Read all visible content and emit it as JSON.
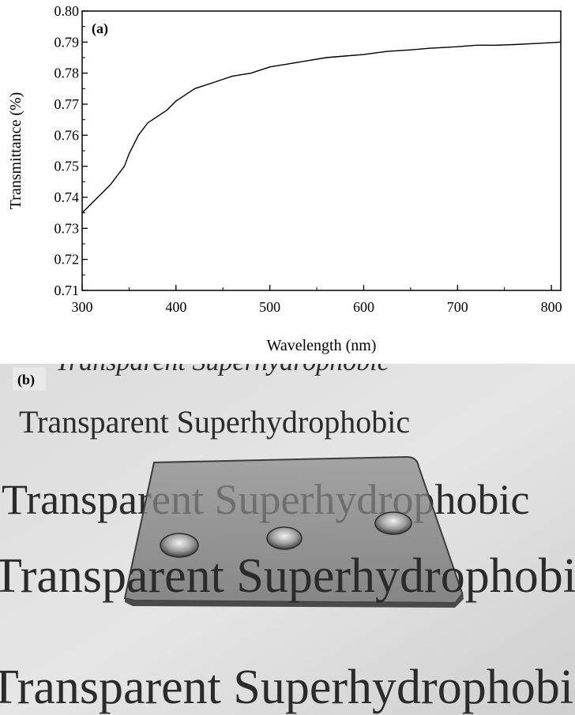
{
  "chart_data": {
    "type": "line",
    "panel_label": "(a)",
    "xlabel": "Wavelength (nm)",
    "ylabel": "Transmittance (%)",
    "xlim": [
      300,
      810
    ],
    "ylim": [
      0.71,
      0.8
    ],
    "x_ticks": [
      300,
      400,
      500,
      600,
      700,
      800
    ],
    "y_ticks": [
      0.71,
      0.72,
      0.73,
      0.74,
      0.75,
      0.76,
      0.77,
      0.78,
      0.79,
      0.8
    ],
    "y_tick_labels": [
      "0.71",
      "0.72",
      "0.73",
      "0.74",
      "0.75",
      "0.76",
      "0.77",
      "0.78",
      "0.79",
      "0.80"
    ],
    "grid": false,
    "series": [
      {
        "x": [
          300,
          310,
          320,
          330,
          340,
          345,
          350,
          355,
          360,
          365,
          370,
          375,
          380,
          390,
          400,
          410,
          420,
          430,
          440,
          450,
          460,
          470,
          480,
          490,
          500,
          520,
          540,
          560,
          580,
          600,
          625,
          650,
          670,
          700,
          720,
          740,
          760,
          780,
          800,
          810
        ],
        "y": [
          0.735,
          0.738,
          0.741,
          0.744,
          0.748,
          0.75,
          0.754,
          0.757,
          0.76,
          0.762,
          0.764,
          0.765,
          0.766,
          0.768,
          0.771,
          0.773,
          0.775,
          0.776,
          0.777,
          0.778,
          0.779,
          0.7795,
          0.78,
          0.781,
          0.782,
          0.783,
          0.784,
          0.785,
          0.7855,
          0.786,
          0.787,
          0.7875,
          0.788,
          0.7885,
          0.789,
          0.789,
          0.7892,
          0.7895,
          0.7898,
          0.79
        ]
      }
    ]
  },
  "photo_panel": {
    "label": "(b)",
    "text_lines": [
      "Transparent Superhydrophobic",
      "Transparent Superhydrophobic",
      "Transparent Superhydrophobic",
      "Transparent Superhydrophobic",
      "Transparent Superhydrophobic"
    ]
  }
}
